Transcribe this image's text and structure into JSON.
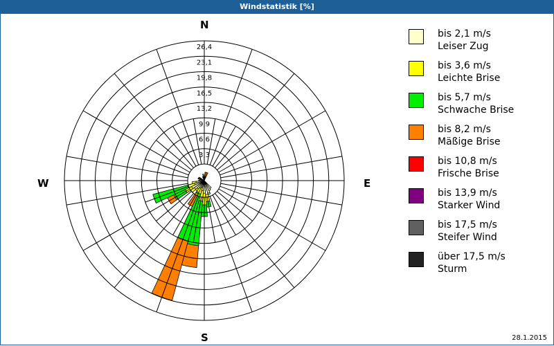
{
  "header": {
    "title": "Windstatistik [%]"
  },
  "compass": {
    "n": "N",
    "e": "E",
    "s": "S",
    "w": "W"
  },
  "footer": {
    "date": "28.1.2015"
  },
  "legend": [
    {
      "line1": "bis 2,1 m/s",
      "line2": "Leiser Zug",
      "color": "#ffffcc"
    },
    {
      "line1": "bis 3,6 m/s",
      "line2": "Leichte Brise",
      "color": "#ffff00"
    },
    {
      "line1": "bis 5,7 m/s",
      "line2": "Schwache Brise",
      "color": "#00ee00"
    },
    {
      "line1": "bis 8,2 m/s",
      "line2": "Mäßige Brise",
      "color": "#ff8000"
    },
    {
      "line1": "bis 10,8 m/s",
      "line2": "Frische Brise",
      "color": "#ff0000"
    },
    {
      "line1": "bis 13,9 m/s",
      "line2": "Starker Wind",
      "color": "#800080"
    },
    {
      "line1": "bis 17,5 m/s",
      "line2": "Steifer Wind",
      "color": "#606060"
    },
    {
      "line1": "über 17,5 m/s",
      "line2": "Sturm",
      "color": "#222222"
    }
  ],
  "chart_data": {
    "type": "wind-rose",
    "title": "Windstatistik [%]",
    "radial_ticks": [
      "3,3",
      "6,6",
      "9,9",
      "13,2",
      "16,5",
      "19,8",
      "23,1",
      "26,4"
    ],
    "radial_max": 26.4,
    "directions_deg": [
      140,
      150,
      160,
      170,
      180,
      190,
      200,
      210,
      220,
      230,
      240,
      250,
      260,
      270,
      280,
      290,
      300,
      310,
      320,
      330,
      340,
      350
    ],
    "series_names": [
      "bis 2,1 m/s",
      "bis 3,6 m/s",
      "bis 5,7 m/s",
      "bis 8,2 m/s",
      "bis 10,8 m/s",
      "bis 13,9 m/s",
      "bis 17,5 m/s",
      "über 17,5 m/s"
    ],
    "petals": [
      {
        "dir": 140,
        "values": [
          1.5,
          0,
          0,
          0,
          0,
          0,
          0,
          0
        ]
      },
      {
        "dir": 150,
        "values": [
          1.8,
          0,
          0,
          0,
          0,
          0,
          0,
          0
        ]
      },
      {
        "dir": 160,
        "values": [
          2.2,
          0.3,
          0,
          0,
          0,
          0,
          0,
          0
        ]
      },
      {
        "dir": 170,
        "values": [
          2.4,
          1.5,
          1.2,
          0,
          0,
          0,
          0,
          0
        ]
      },
      {
        "dir": 180,
        "values": [
          2.1,
          2.5,
          2.5,
          0,
          0,
          0,
          0,
          0
        ]
      },
      {
        "dir": 190,
        "values": [
          1.6,
          2.2,
          9.6,
          4.7,
          0,
          0,
          0,
          0
        ]
      },
      {
        "dir": 200,
        "values": [
          0.9,
          1.5,
          10.4,
          13.2,
          0,
          0,
          0,
          0
        ]
      },
      {
        "dir": 210,
        "values": [
          1.2,
          1.0,
          0.3,
          3.0,
          0,
          0,
          0,
          0
        ]
      },
      {
        "dir": 220,
        "values": [
          1.6,
          0.5,
          0,
          0,
          0,
          0,
          0,
          0
        ]
      },
      {
        "dir": 230,
        "values": [
          2.0,
          1.0,
          0,
          0,
          0,
          0,
          0,
          0
        ]
      },
      {
        "dir": 240,
        "values": [
          2.4,
          1.5,
          2.7,
          1.5,
          0,
          0,
          0,
          0
        ]
      },
      {
        "dir": 250,
        "values": [
          1.6,
          1.5,
          7.7,
          0,
          0,
          0,
          0,
          0
        ]
      },
      {
        "dir": 260,
        "values": [
          1.2,
          0.8,
          0,
          0,
          0,
          0,
          0,
          0
        ]
      },
      {
        "dir": 270,
        "values": [
          0.6,
          0,
          0,
          0,
          0,
          0,
          0,
          0
        ]
      },
      {
        "dir": 290,
        "values": [
          0.3,
          0.2,
          0,
          0,
          0.3,
          0,
          0,
          0
        ]
      },
      {
        "dir": 300,
        "values": [
          0.4,
          0,
          0,
          0,
          0.3,
          0,
          0,
          0
        ]
      },
      {
        "dir": 340,
        "values": [
          0.3,
          0,
          0,
          0,
          0,
          0,
          0,
          0
        ]
      },
      {
        "dir": 350,
        "values": [
          0.2,
          0,
          0,
          0.6,
          0,
          0,
          0,
          0
        ]
      },
      {
        "dir": 10,
        "values": [
          0.2,
          0,
          0,
          1.0,
          0,
          0,
          0,
          0
        ]
      },
      {
        "dir": 20,
        "values": [
          0,
          0,
          0,
          1.2,
          0,
          0,
          0,
          0
        ]
      }
    ],
    "legend_position": "right"
  }
}
